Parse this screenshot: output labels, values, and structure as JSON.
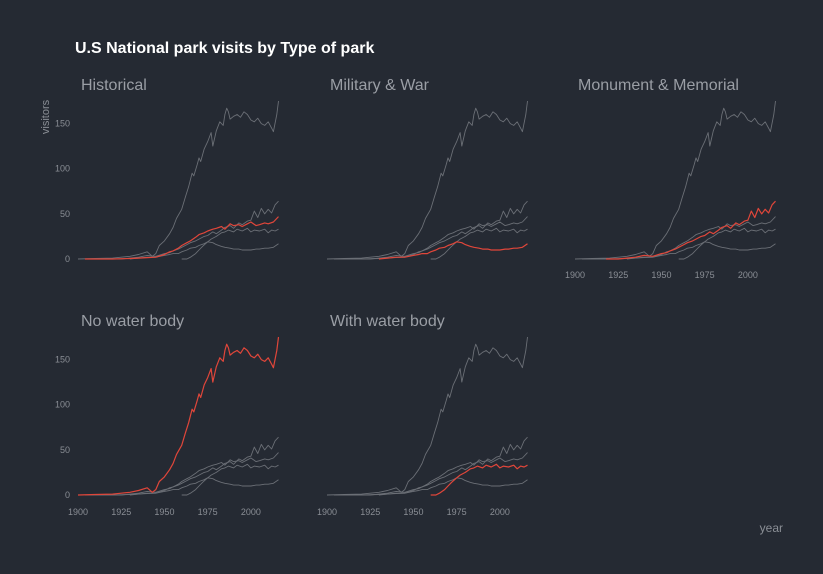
{
  "chart_data": {
    "type": "line",
    "title": "U.S National park visits by Type of park",
    "xlabel": "year",
    "ylabel": "visitors",
    "xlim": [
      1900,
      2018
    ],
    "ylim": [
      0,
      175
    ],
    "xticks": [
      1900,
      1925,
      1950,
      1975,
      2000
    ],
    "yticks": [
      0,
      50,
      100,
      150
    ],
    "grid": false,
    "legend": "none",
    "highlight_color": "#e0463a",
    "context_color": "#6b6f76",
    "panels": [
      {
        "name": "Historical",
        "highlight": 0
      },
      {
        "name": "Military & War",
        "highlight": 1
      },
      {
        "name": "Monument & Memorial",
        "highlight": 2
      },
      {
        "name": "No water body",
        "highlight": 3
      },
      {
        "name": "With water body",
        "highlight": 4
      }
    ],
    "series": [
      {
        "values": [
          [
            1904,
            0
          ],
          [
            1920,
            0
          ],
          [
            1930,
            0.5
          ],
          [
            1935,
            1
          ],
          [
            1940,
            1.5
          ],
          [
            1945,
            2
          ],
          [
            1950,
            5
          ],
          [
            1953,
            8
          ],
          [
            1955,
            9
          ],
          [
            1958,
            12
          ],
          [
            1960,
            15
          ],
          [
            1963,
            18
          ],
          [
            1965,
            20
          ],
          [
            1968,
            24
          ],
          [
            1970,
            27
          ],
          [
            1973,
            29
          ],
          [
            1975,
            31
          ],
          [
            1978,
            33
          ],
          [
            1980,
            34
          ],
          [
            1983,
            36
          ],
          [
            1985,
            33
          ],
          [
            1988,
            39
          ],
          [
            1990,
            37
          ],
          [
            1993,
            38
          ],
          [
            1995,
            36
          ],
          [
            1998,
            39
          ],
          [
            2000,
            41
          ],
          [
            2003,
            37
          ],
          [
            2005,
            38
          ],
          [
            2008,
            40
          ],
          [
            2010,
            39
          ],
          [
            2013,
            41
          ],
          [
            2016,
            47
          ]
        ]
      },
      {
        "values": [
          [
            1930,
            0
          ],
          [
            1935,
            1
          ],
          [
            1940,
            2
          ],
          [
            1945,
            2
          ],
          [
            1950,
            4
          ],
          [
            1953,
            5
          ],
          [
            1955,
            6
          ],
          [
            1958,
            6
          ],
          [
            1960,
            8
          ],
          [
            1963,
            10
          ],
          [
            1965,
            12
          ],
          [
            1968,
            13
          ],
          [
            1970,
            15
          ],
          [
            1973,
            17
          ],
          [
            1975,
            19
          ],
          [
            1978,
            18
          ],
          [
            1980,
            16
          ],
          [
            1983,
            14
          ],
          [
            1985,
            13
          ],
          [
            1988,
            12
          ],
          [
            1990,
            11
          ],
          [
            1993,
            11
          ],
          [
            1995,
            10
          ],
          [
            1998,
            10
          ],
          [
            2000,
            10
          ],
          [
            2003,
            11
          ],
          [
            2005,
            11
          ],
          [
            2008,
            12
          ],
          [
            2010,
            12
          ],
          [
            2013,
            13
          ],
          [
            2016,
            17
          ]
        ]
      },
      {
        "values": [
          [
            1918,
            0
          ],
          [
            1925,
            0
          ],
          [
            1930,
            1
          ],
          [
            1935,
            2
          ],
          [
            1940,
            4
          ],
          [
            1945,
            3
          ],
          [
            1950,
            6
          ],
          [
            1953,
            7
          ],
          [
            1955,
            9
          ],
          [
            1958,
            11
          ],
          [
            1960,
            13
          ],
          [
            1963,
            16
          ],
          [
            1965,
            18
          ],
          [
            1968,
            20
          ],
          [
            1970,
            22
          ],
          [
            1973,
            25
          ],
          [
            1975,
            26
          ],
          [
            1978,
            30
          ],
          [
            1980,
            28
          ],
          [
            1983,
            32
          ],
          [
            1985,
            35
          ],
          [
            1988,
            37
          ],
          [
            1990,
            34
          ],
          [
            1993,
            40
          ],
          [
            1995,
            38
          ],
          [
            1998,
            42
          ],
          [
            2000,
            43
          ],
          [
            2002,
            53
          ],
          [
            2004,
            46
          ],
          [
            2006,
            56
          ],
          [
            2008,
            50
          ],
          [
            2010,
            55
          ],
          [
            2012,
            51
          ],
          [
            2014,
            60
          ],
          [
            2016,
            64
          ]
        ]
      },
      {
        "values": [
          [
            1900,
            0
          ],
          [
            1910,
            0.5
          ],
          [
            1920,
            1
          ],
          [
            1925,
            2
          ],
          [
            1930,
            3
          ],
          [
            1935,
            5
          ],
          [
            1940,
            8
          ],
          [
            1943,
            3
          ],
          [
            1945,
            6
          ],
          [
            1947,
            15
          ],
          [
            1950,
            20
          ],
          [
            1953,
            28
          ],
          [
            1955,
            35
          ],
          [
            1957,
            45
          ],
          [
            1960,
            55
          ],
          [
            1962,
            68
          ],
          [
            1964,
            80
          ],
          [
            1966,
            95
          ],
          [
            1967,
            92
          ],
          [
            1969,
            105
          ],
          [
            1970,
            112
          ],
          [
            1971,
            108
          ],
          [
            1973,
            122
          ],
          [
            1975,
            130
          ],
          [
            1977,
            140
          ],
          [
            1978,
            125
          ],
          [
            1980,
            142
          ],
          [
            1982,
            152
          ],
          [
            1984,
            148
          ],
          [
            1985,
            160
          ],
          [
            1986,
            167
          ],
          [
            1987,
            163
          ],
          [
            1988,
            155
          ],
          [
            1990,
            158
          ],
          [
            1992,
            160
          ],
          [
            1994,
            157
          ],
          [
            1996,
            163
          ],
          [
            1998,
            160
          ],
          [
            2000,
            154
          ],
          [
            2002,
            152
          ],
          [
            2004,
            156
          ],
          [
            2006,
            150
          ],
          [
            2008,
            148
          ],
          [
            2010,
            152
          ],
          [
            2012,
            145
          ],
          [
            2013,
            141
          ],
          [
            2015,
            160
          ],
          [
            2016,
            175
          ]
        ]
      },
      {
        "values": [
          [
            1960,
            0
          ],
          [
            1963,
            0
          ],
          [
            1965,
            2
          ],
          [
            1968,
            6
          ],
          [
            1970,
            10
          ],
          [
            1972,
            14
          ],
          [
            1975,
            19
          ],
          [
            1977,
            22
          ],
          [
            1980,
            25
          ],
          [
            1983,
            29
          ],
          [
            1985,
            30
          ],
          [
            1987,
            32
          ],
          [
            1990,
            30
          ],
          [
            1992,
            33
          ],
          [
            1995,
            31
          ],
          [
            1998,
            34
          ],
          [
            2000,
            30
          ],
          [
            2002,
            32
          ],
          [
            2005,
            31
          ],
          [
            2008,
            33
          ],
          [
            2010,
            29
          ],
          [
            2012,
            32
          ],
          [
            2014,
            31
          ],
          [
            2016,
            33
          ]
        ]
      }
    ]
  }
}
